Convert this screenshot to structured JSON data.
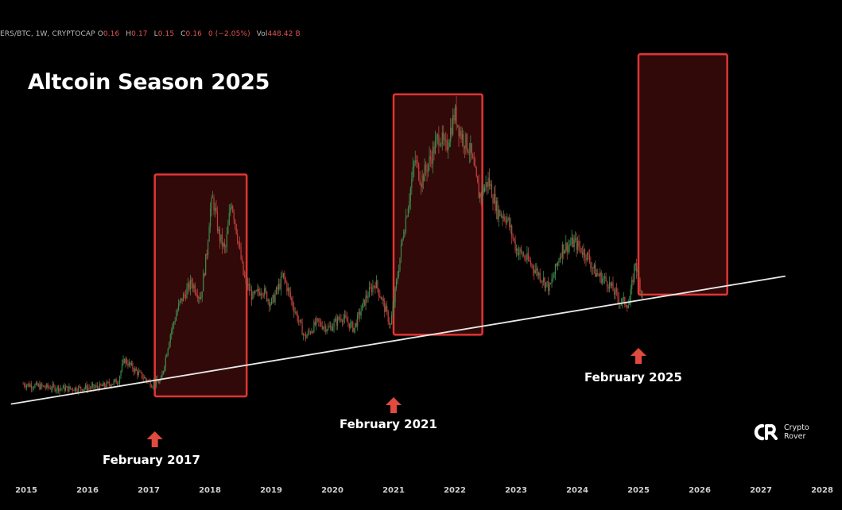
{
  "ticker": {
    "symbol": "ERS/BTC, 1W, CRYPTOCAP",
    "open_label": "O",
    "open_value": "0.16",
    "high_label": "H",
    "high_value": "0.17",
    "low_label": "L",
    "low_value": "0.15",
    "close_label": "C",
    "close_value": "0.16",
    "change_value": "0 (−2.05%)",
    "volume_label": "Vol",
    "volume_value": "448.42 B"
  },
  "colors": {
    "background": "#000000",
    "highlight_border": "#e03535",
    "highlight_fill": "#3a0a0a",
    "arrow": "#e04a3f",
    "trendline": "#e8e8e8",
    "candle_up": "#3c8a4e",
    "candle_down": "#c0403c"
  },
  "chart_data": {
    "type": "line",
    "title": "Altcoin Season 2025",
    "xlabel": "",
    "ylabel": "",
    "grid": false,
    "x_ticks": [
      "2015",
      "2016",
      "2017",
      "2018",
      "2019",
      "2020",
      "2021",
      "2022",
      "2023",
      "2024",
      "2025",
      "2026",
      "2027",
      "2028"
    ],
    "x_range": [
      2014.95,
      2028.4
    ],
    "y_range": [
      0,
      1
    ],
    "y_scale_note": "unlabeled",
    "series": [
      {
        "name": "",
        "points": [
          [
            2014.95,
            0.12
          ],
          [
            2015.3,
            0.11
          ],
          [
            2015.7,
            0.105
          ],
          [
            2016.2,
            0.11
          ],
          [
            2016.5,
            0.13
          ],
          [
            2016.6,
            0.2
          ],
          [
            2016.8,
            0.16
          ],
          [
            2017.05,
            0.12
          ],
          [
            2017.2,
            0.13
          ],
          [
            2017.35,
            0.28
          ],
          [
            2017.5,
            0.38
          ],
          [
            2017.7,
            0.45
          ],
          [
            2017.85,
            0.4
          ],
          [
            2017.95,
            0.55
          ],
          [
            2018.0,
            0.68
          ],
          [
            2018.05,
            0.72
          ],
          [
            2018.15,
            0.6
          ],
          [
            2018.25,
            0.55
          ],
          [
            2018.35,
            0.72
          ],
          [
            2018.45,
            0.6
          ],
          [
            2018.55,
            0.47
          ],
          [
            2018.7,
            0.4
          ],
          [
            2018.85,
            0.43
          ],
          [
            2019.0,
            0.38
          ],
          [
            2019.2,
            0.47
          ],
          [
            2019.35,
            0.38
          ],
          [
            2019.55,
            0.27
          ],
          [
            2019.75,
            0.32
          ],
          [
            2019.95,
            0.3
          ],
          [
            2020.15,
            0.34
          ],
          [
            2020.35,
            0.3
          ],
          [
            2020.55,
            0.4
          ],
          [
            2020.7,
            0.45
          ],
          [
            2020.8,
            0.4
          ],
          [
            2020.95,
            0.31
          ],
          [
            2021.05,
            0.45
          ],
          [
            2021.15,
            0.6
          ],
          [
            2021.25,
            0.72
          ],
          [
            2021.35,
            0.85
          ],
          [
            2021.45,
            0.78
          ],
          [
            2021.6,
            0.85
          ],
          [
            2021.75,
            0.93
          ],
          [
            2021.85,
            0.88
          ],
          [
            2022.0,
            1.0
          ],
          [
            2022.1,
            0.93
          ],
          [
            2022.25,
            0.88
          ],
          [
            2022.4,
            0.73
          ],
          [
            2022.55,
            0.78
          ],
          [
            2022.7,
            0.68
          ],
          [
            2022.85,
            0.66
          ],
          [
            2023.0,
            0.56
          ],
          [
            2023.2,
            0.52
          ],
          [
            2023.4,
            0.47
          ],
          [
            2023.55,
            0.43
          ],
          [
            2023.75,
            0.56
          ],
          [
            2023.95,
            0.58
          ],
          [
            2024.15,
            0.54
          ],
          [
            2024.3,
            0.48
          ],
          [
            2024.5,
            0.45
          ],
          [
            2024.7,
            0.39
          ],
          [
            2024.85,
            0.38
          ],
          [
            2024.95,
            0.52
          ],
          [
            2025.0,
            0.46
          ],
          [
            2025.08,
            0.4
          ]
        ]
      }
    ],
    "trendline": {
      "x": [
        2014.75,
        2027.4
      ],
      "y": [
        0.055,
        0.47
      ]
    },
    "highlight_ranges": [
      {
        "x_start": 2017.1,
        "x_end": 2018.6,
        "y_low": 0.08,
        "y_high": 0.8
      },
      {
        "x_start": 2021.0,
        "x_end": 2022.45,
        "y_low": 0.28,
        "y_high": 1.06
      },
      {
        "x_start": 2025.0,
        "x_end": 2026.45,
        "y_low": 0.41,
        "y_high": 1.19
      }
    ],
    "annotations": [
      {
        "text": "February 2017",
        "x": 2017.1,
        "arrow": "up"
      },
      {
        "text": "February 2021",
        "x": 2021.0,
        "arrow": "up"
      },
      {
        "text": "February 2025",
        "x": 2025.0,
        "arrow": "up"
      }
    ],
    "watermark": {
      "mark": "CR",
      "line1": "Crypto",
      "line2": "Rover"
    }
  }
}
